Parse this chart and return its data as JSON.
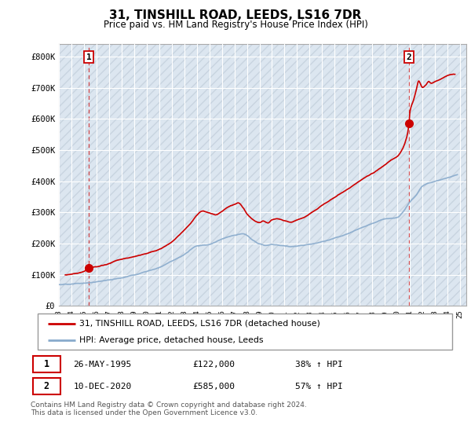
{
  "title": "31, TINSHILL ROAD, LEEDS, LS16 7DR",
  "subtitle": "Price paid vs. HM Land Registry's House Price Index (HPI)",
  "background_color": "#ffffff",
  "plot_bg_color": "#dce6f0",
  "hatch_color": "#c8d4e0",
  "grid_color": "#ffffff",
  "sale1_date_num": 1995.38,
  "sale1_price": 122000,
  "sale1_label": "1",
  "sale2_date_num": 2020.94,
  "sale2_price": 585000,
  "sale2_label": "2",
  "ylim": [
    0,
    840000
  ],
  "xlim": [
    1993.0,
    2025.5
  ],
  "yticks": [
    0,
    100000,
    200000,
    300000,
    400000,
    500000,
    600000,
    700000,
    800000
  ],
  "ytick_labels": [
    "£0",
    "£100K",
    "£200K",
    "£300K",
    "£400K",
    "£500K",
    "£600K",
    "£700K",
    "£800K"
  ],
  "legend_line1": "31, TINSHILL ROAD, LEEDS, LS16 7DR (detached house)",
  "legend_line2": "HPI: Average price, detached house, Leeds",
  "footer": "Contains HM Land Registry data © Crown copyright and database right 2024.\nThis data is licensed under the Open Government Licence v3.0.",
  "table_row1": [
    "1",
    "26-MAY-1995",
    "£122,000",
    "38% ↑ HPI"
  ],
  "table_row2": [
    "2",
    "10-DEC-2020",
    "£585,000",
    "57% ↑ HPI"
  ],
  "red_line_color": "#cc0000",
  "blue_line_color": "#88aacc",
  "dot_color": "#cc0000",
  "dashed_line_color": "#cc0000",
  "hpi_key_points": [
    [
      1993.0,
      68000
    ],
    [
      1994.0,
      70000
    ],
    [
      1995.0,
      72000
    ],
    [
      1996.0,
      76000
    ],
    [
      1997.0,
      82000
    ],
    [
      1998.0,
      90000
    ],
    [
      1999.0,
      100000
    ],
    [
      2000.0,
      112000
    ],
    [
      2001.0,
      126000
    ],
    [
      2002.0,
      148000
    ],
    [
      2003.0,
      168000
    ],
    [
      2004.0,
      195000
    ],
    [
      2005.0,
      200000
    ],
    [
      2006.0,
      215000
    ],
    [
      2007.0,
      228000
    ],
    [
      2007.7,
      232000
    ],
    [
      2008.5,
      210000
    ],
    [
      2009.0,
      198000
    ],
    [
      2009.5,
      195000
    ],
    [
      2010.0,
      200000
    ],
    [
      2010.5,
      198000
    ],
    [
      2011.0,
      196000
    ],
    [
      2011.5,
      194000
    ],
    [
      2012.0,
      196000
    ],
    [
      2013.0,
      202000
    ],
    [
      2014.0,
      212000
    ],
    [
      2015.0,
      225000
    ],
    [
      2016.0,
      238000
    ],
    [
      2017.0,
      255000
    ],
    [
      2018.0,
      270000
    ],
    [
      2019.0,
      285000
    ],
    [
      2020.0,
      290000
    ],
    [
      2020.5,
      310000
    ],
    [
      2021.0,
      340000
    ],
    [
      2021.5,
      360000
    ],
    [
      2022.0,
      390000
    ],
    [
      2022.5,
      400000
    ],
    [
      2023.0,
      405000
    ],
    [
      2023.5,
      410000
    ],
    [
      2024.0,
      415000
    ],
    [
      2024.5,
      420000
    ],
    [
      2025.0,
      425000
    ]
  ],
  "red_key_points": [
    [
      1993.5,
      100000
    ],
    [
      1994.0,
      103000
    ],
    [
      1995.0,
      112000
    ],
    [
      1995.38,
      122000
    ],
    [
      1996.0,
      128000
    ],
    [
      1997.0,
      138000
    ],
    [
      1997.5,
      148000
    ],
    [
      1998.0,
      155000
    ],
    [
      1999.0,
      165000
    ],
    [
      2000.0,
      175000
    ],
    [
      2001.0,
      188000
    ],
    [
      2002.0,
      210000
    ],
    [
      2003.0,
      248000
    ],
    [
      2003.5,
      268000
    ],
    [
      2004.0,
      295000
    ],
    [
      2004.5,
      308000
    ],
    [
      2005.0,
      302000
    ],
    [
      2005.5,
      295000
    ],
    [
      2006.0,
      305000
    ],
    [
      2006.5,
      318000
    ],
    [
      2007.0,
      325000
    ],
    [
      2007.3,
      330000
    ],
    [
      2007.7,
      315000
    ],
    [
      2008.0,
      295000
    ],
    [
      2008.5,
      278000
    ],
    [
      2009.0,
      268000
    ],
    [
      2009.3,
      272000
    ],
    [
      2009.7,
      265000
    ],
    [
      2010.0,
      275000
    ],
    [
      2010.5,
      278000
    ],
    [
      2011.0,
      272000
    ],
    [
      2011.5,
      268000
    ],
    [
      2012.0,
      275000
    ],
    [
      2012.5,
      282000
    ],
    [
      2013.0,
      295000
    ],
    [
      2013.5,
      308000
    ],
    [
      2014.0,
      322000
    ],
    [
      2014.5,
      335000
    ],
    [
      2015.0,
      348000
    ],
    [
      2015.5,
      360000
    ],
    [
      2016.0,
      372000
    ],
    [
      2016.5,
      385000
    ],
    [
      2017.0,
      398000
    ],
    [
      2017.5,
      412000
    ],
    [
      2018.0,
      425000
    ],
    [
      2018.5,
      438000
    ],
    [
      2019.0,
      450000
    ],
    [
      2019.5,
      465000
    ],
    [
      2020.0,
      478000
    ],
    [
      2020.5,
      510000
    ],
    [
      2020.94,
      585000
    ],
    [
      2021.0,
      620000
    ],
    [
      2021.3,
      660000
    ],
    [
      2021.5,
      690000
    ],
    [
      2021.7,
      720000
    ],
    [
      2022.0,
      700000
    ],
    [
      2022.3,
      710000
    ],
    [
      2022.5,
      720000
    ],
    [
      2022.7,
      715000
    ],
    [
      2023.0,
      720000
    ],
    [
      2023.5,
      730000
    ],
    [
      2024.0,
      740000
    ],
    [
      2024.5,
      745000
    ]
  ]
}
